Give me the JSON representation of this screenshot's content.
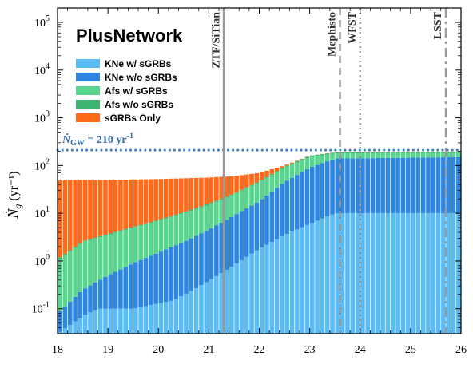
{
  "chart_data": {
    "type": "bar",
    "stacked": true,
    "title": "PlusNetwork",
    "ylabel": "Ṅ_g (yr⁻¹)",
    "xlabel": "",
    "yscale": "log",
    "xlim": [
      18,
      26
    ],
    "ylim": [
      0.03,
      200000
    ],
    "x_ticks": [
      "18",
      "19",
      "20",
      "21",
      "22",
      "23",
      "24",
      "25",
      "26"
    ],
    "y_ticks": [
      {
        "base": "10",
        "exp": "-1",
        "value": 0.1
      },
      {
        "base": "10",
        "exp": "0",
        "value": 1
      },
      {
        "base": "10",
        "exp": "1",
        "value": 10
      },
      {
        "base": "10",
        "exp": "2",
        "value": 100
      },
      {
        "base": "10",
        "exp": "3",
        "value": 1000
      },
      {
        "base": "10",
        "exp": "4",
        "value": 10000
      },
      {
        "base": "10",
        "exp": "5",
        "value": 100000
      }
    ],
    "series": [
      {
        "name": "KNe w/  sGRBs",
        "color": "#5bbcf5",
        "keypoints": [
          [
            18.0,
            0.03
          ],
          [
            18.3,
            0.05
          ],
          [
            18.5,
            0.07
          ],
          [
            18.8,
            0.1
          ],
          [
            19.5,
            0.1
          ],
          [
            20.3,
            0.15
          ],
          [
            20.7,
            0.25
          ],
          [
            21.3,
            0.6
          ],
          [
            22.0,
            1.8
          ],
          [
            22.5,
            3.5
          ],
          [
            23.0,
            6.0
          ],
          [
            23.5,
            10.0
          ],
          [
            26.0,
            10.0
          ]
        ]
      },
      {
        "name": "KNe w/o sGRBs",
        "color": "#2f86e0",
        "keypoints": [
          [
            18.0,
            0.08
          ],
          [
            18.5,
            0.25
          ],
          [
            19.0,
            0.5
          ],
          [
            19.5,
            0.9
          ],
          [
            20.0,
            1.5
          ],
          [
            20.5,
            2.5
          ],
          [
            21.0,
            4.5
          ],
          [
            21.5,
            9.0
          ],
          [
            22.0,
            18.0
          ],
          [
            22.5,
            45.0
          ],
          [
            23.0,
            90.0
          ],
          [
            23.5,
            140.0
          ],
          [
            26.0,
            150.0
          ]
        ]
      },
      {
        "name": "Afs w/  sGRBs",
        "color": "#58d68d",
        "keypoints": [
          [
            18.0,
            1.0
          ],
          [
            18.5,
            2.5
          ],
          [
            19.0,
            3.5
          ],
          [
            19.5,
            5.0
          ],
          [
            20.0,
            7.0
          ],
          [
            20.5,
            10.0
          ],
          [
            21.0,
            15.0
          ],
          [
            21.5,
            25.0
          ],
          [
            22.0,
            45.0
          ],
          [
            22.5,
            90.0
          ],
          [
            23.0,
            150.0
          ],
          [
            23.5,
            180.0
          ],
          [
            26.0,
            185.0
          ]
        ]
      },
      {
        "name": "Afs w/o sGRBs",
        "color": "#3cb371",
        "keypoints": [
          [
            18.0,
            1.1
          ],
          [
            18.5,
            2.6
          ],
          [
            19.0,
            3.7
          ],
          [
            19.5,
            5.2
          ],
          [
            20.0,
            7.3
          ],
          [
            20.5,
            10.5
          ],
          [
            21.0,
            16.0
          ],
          [
            21.5,
            26.0
          ],
          [
            22.0,
            47.0
          ],
          [
            22.5,
            95.0
          ],
          [
            23.0,
            160.0
          ],
          [
            23.5,
            188.0
          ],
          [
            26.0,
            195.0
          ]
        ]
      },
      {
        "name": "sGRBs Only",
        "color": "#ff6a1a",
        "keypoints": [
          [
            18.0,
            50.0
          ],
          [
            19.0,
            50.0
          ],
          [
            20.0,
            52.0
          ],
          [
            21.0,
            56.0
          ],
          [
            21.5,
            60.0
          ],
          [
            22.0,
            70.0
          ],
          [
            22.5,
            100.0
          ],
          [
            23.0,
            160.0
          ],
          [
            23.5,
            190.0
          ],
          [
            26.0,
            196.0
          ]
        ]
      }
    ],
    "n_bars": 80,
    "reference_line": {
      "label_main": "Ṅ",
      "label_sub": "GW",
      "label_rest": " = 210 yr",
      "label_sup": "-1",
      "value": 210,
      "color": "#3a7cc8"
    },
    "vertical_lines": [
      {
        "label": "ZTF/SiTian",
        "x": 21.3,
        "style": "solid",
        "color": "#999999"
      },
      {
        "label": "Mephisto",
        "x": 23.6,
        "style": "dashed",
        "color": "#999999"
      },
      {
        "label": "WFST",
        "x": 24.0,
        "style": "dotted",
        "color": "#999999"
      },
      {
        "label": "LSST",
        "x": 25.7,
        "style": "dashdot",
        "color": "#999999"
      }
    ],
    "legend_placement": "top-left",
    "grid": false
  }
}
